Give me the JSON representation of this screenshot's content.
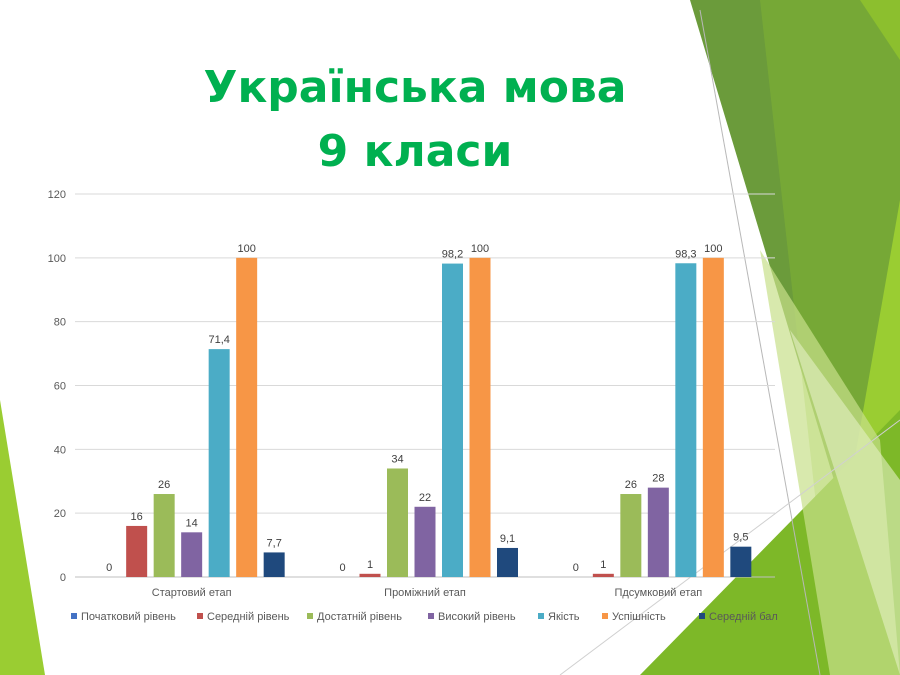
{
  "slide": {
    "title_line1": "Українська мова",
    "title_line2": "9 класи",
    "title_color": "#00B050"
  },
  "theme": {
    "greens": [
      "#6A9A3A",
      "#8CBF2E",
      "#9ACD32",
      "#C8E08A",
      "#E4F0C4",
      "#7DB828"
    ]
  },
  "chart_data": {
    "type": "bar",
    "categories": [
      "Стартовий етап",
      "Проміжний етап",
      "Пдсумковий етап"
    ],
    "series": [
      {
        "name": "Початковий рівень",
        "color": "#4472C4",
        "values": [
          0,
          0,
          0
        ],
        "labels": [
          "0",
          "0",
          "0"
        ]
      },
      {
        "name": "Середній рівень",
        "color": "#C0504D",
        "values": [
          16,
          1,
          1
        ],
        "labels": [
          "16",
          "1",
          "1"
        ]
      },
      {
        "name": "Достатній рівень",
        "color": "#9BBB59",
        "values": [
          26,
          34,
          26
        ],
        "labels": [
          "26",
          "34",
          "26"
        ]
      },
      {
        "name": "Високий рівень",
        "color": "#8064A2",
        "values": [
          14,
          22,
          28
        ],
        "labels": [
          "14",
          "22",
          "28"
        ]
      },
      {
        "name": "Якість",
        "color": "#4BACC6",
        "values": [
          71.4,
          98.2,
          98.3
        ],
        "labels": [
          "71,4",
          "98,2",
          "98,3"
        ]
      },
      {
        "name": "Успішність",
        "color": "#F79646",
        "values": [
          100,
          100,
          100
        ],
        "labels": [
          "100",
          "100",
          "100"
        ]
      },
      {
        "name": "Середній бал",
        "color": "#1F497D",
        "values": [
          7.7,
          9.1,
          9.5
        ],
        "labels": [
          "7,7",
          "9,1",
          "9,5"
        ]
      }
    ],
    "ylim": [
      0,
      120
    ],
    "yticks": [
      0,
      20,
      40,
      60,
      80,
      100,
      120
    ],
    "grid": true,
    "legend": "bottom"
  }
}
